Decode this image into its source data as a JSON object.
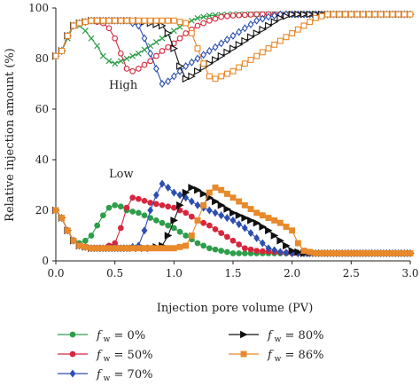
{
  "chart_data": {
    "type": "line",
    "title": "",
    "xlabel": "Injection pore volume (PV)",
    "ylabel": "Relative injection amount (%)",
    "xlim": [
      0,
      3.0
    ],
    "ylim": [
      0,
      100
    ],
    "xticks": [
      "0.0",
      "0.5",
      "1.0",
      "1.5",
      "2.0",
      "2.5",
      "3.0"
    ],
    "yticks": [
      "0",
      "20",
      "40",
      "60",
      "80",
      "100"
    ],
    "grid": false,
    "legend_position": "bottom",
    "annotations": [
      {
        "id": "high",
        "text": "High",
        "x": 0.45,
        "y": 68
      },
      {
        "id": "low",
        "text": "Low",
        "x": 0.45,
        "y": 33
      }
    ],
    "series": [
      {
        "name": "f_w = 0%",
        "label_main": "f",
        "label_sub": "w",
        "label_rest": " = 0%",
        "color": "#2e9e4a",
        "marker": "circle",
        "high": [
          [
            0,
            81
          ],
          [
            0.05,
            83
          ],
          [
            0.1,
            88
          ],
          [
            0.15,
            93
          ],
          [
            0.2,
            93
          ],
          [
            0.25,
            91
          ],
          [
            0.3,
            88
          ],
          [
            0.35,
            85
          ],
          [
            0.4,
            81
          ],
          [
            0.45,
            79
          ],
          [
            0.5,
            78
          ],
          [
            0.55,
            79
          ],
          [
            0.6,
            80
          ],
          [
            0.7,
            82
          ],
          [
            0.8,
            85
          ],
          [
            0.9,
            88
          ],
          [
            1.0,
            91
          ],
          [
            1.1,
            94
          ],
          [
            1.2,
            96
          ],
          [
            1.3,
            97
          ],
          [
            1.5,
            97.5
          ],
          [
            2.0,
            97.5
          ],
          [
            3.0,
            97.5
          ]
        ],
        "low": [
          [
            0,
            20
          ],
          [
            0.05,
            17
          ],
          [
            0.1,
            12
          ],
          [
            0.15,
            8
          ],
          [
            0.2,
            7
          ],
          [
            0.25,
            8
          ],
          [
            0.3,
            10
          ],
          [
            0.35,
            14
          ],
          [
            0.4,
            18
          ],
          [
            0.45,
            21
          ],
          [
            0.5,
            22
          ],
          [
            0.55,
            21.5
          ],
          [
            0.6,
            20
          ],
          [
            0.7,
            19
          ],
          [
            0.8,
            17
          ],
          [
            0.9,
            15
          ],
          [
            1.0,
            13
          ],
          [
            1.1,
            10
          ],
          [
            1.2,
            7
          ],
          [
            1.3,
            5
          ],
          [
            1.4,
            4
          ],
          [
            1.5,
            3
          ],
          [
            2.0,
            3
          ],
          [
            3.0,
            3
          ]
        ]
      },
      {
        "name": "f_w = 50%",
        "label_main": "f",
        "label_sub": "w",
        "label_rest": " = 50%",
        "color": "#d7263d",
        "marker": "circle",
        "high": [
          [
            0,
            81
          ],
          [
            0.05,
            83
          ],
          [
            0.1,
            89
          ],
          [
            0.15,
            93
          ],
          [
            0.2,
            94
          ],
          [
            0.3,
            95
          ],
          [
            0.4,
            94
          ],
          [
            0.45,
            92
          ],
          [
            0.5,
            88
          ],
          [
            0.55,
            82
          ],
          [
            0.6,
            76
          ],
          [
            0.65,
            75
          ],
          [
            0.7,
            76
          ],
          [
            0.8,
            79
          ],
          [
            0.9,
            83
          ],
          [
            1.0,
            86
          ],
          [
            1.1,
            90
          ],
          [
            1.2,
            93
          ],
          [
            1.3,
            95
          ],
          [
            1.4,
            96.5
          ],
          [
            1.5,
            97
          ],
          [
            1.7,
            97.5
          ],
          [
            2.0,
            97.5
          ],
          [
            3.0,
            97.5
          ]
        ],
        "low": [
          [
            0,
            20
          ],
          [
            0.05,
            17
          ],
          [
            0.1,
            12
          ],
          [
            0.15,
            8
          ],
          [
            0.2,
            6
          ],
          [
            0.3,
            5
          ],
          [
            0.4,
            5
          ],
          [
            0.5,
            7
          ],
          [
            0.55,
            13
          ],
          [
            0.6,
            21
          ],
          [
            0.65,
            25
          ],
          [
            0.7,
            24.5
          ],
          [
            0.8,
            23
          ],
          [
            0.9,
            22
          ],
          [
            1.0,
            21
          ],
          [
            1.1,
            19
          ],
          [
            1.2,
            16
          ],
          [
            1.3,
            14
          ],
          [
            1.4,
            11
          ],
          [
            1.5,
            8
          ],
          [
            1.6,
            5
          ],
          [
            1.7,
            4
          ],
          [
            2.0,
            3
          ],
          [
            3.0,
            3
          ]
        ]
      },
      {
        "name": "f_w = 70%",
        "label_main": "f",
        "label_sub": "w",
        "label_rest": " = 70%",
        "color": "#2c4fb0",
        "marker": "diamond",
        "high": [
          [
            0,
            81
          ],
          [
            0.05,
            83
          ],
          [
            0.1,
            89
          ],
          [
            0.15,
            93
          ],
          [
            0.2,
            94
          ],
          [
            0.3,
            95
          ],
          [
            0.4,
            95
          ],
          [
            0.5,
            95
          ],
          [
            0.6,
            95
          ],
          [
            0.7,
            93
          ],
          [
            0.75,
            88
          ],
          [
            0.8,
            82
          ],
          [
            0.85,
            76
          ],
          [
            0.9,
            70
          ],
          [
            0.95,
            71
          ],
          [
            1.0,
            73
          ],
          [
            1.1,
            77
          ],
          [
            1.2,
            80
          ],
          [
            1.3,
            83
          ],
          [
            1.4,
            86
          ],
          [
            1.5,
            89
          ],
          [
            1.6,
            92
          ],
          [
            1.7,
            95
          ],
          [
            1.8,
            96.5
          ],
          [
            1.9,
            97.5
          ],
          [
            2.0,
            97.5
          ],
          [
            3.0,
            97.5
          ]
        ],
        "low": [
          [
            0,
            20
          ],
          [
            0.05,
            17
          ],
          [
            0.1,
            12
          ],
          [
            0.15,
            8
          ],
          [
            0.2,
            6
          ],
          [
            0.3,
            5
          ],
          [
            0.4,
            5
          ],
          [
            0.5,
            5
          ],
          [
            0.6,
            5
          ],
          [
            0.7,
            6
          ],
          [
            0.75,
            12
          ],
          [
            0.8,
            20
          ],
          [
            0.85,
            26
          ],
          [
            0.9,
            30.5
          ],
          [
            0.95,
            29
          ],
          [
            1.0,
            27
          ],
          [
            1.1,
            25
          ],
          [
            1.2,
            22
          ],
          [
            1.3,
            20
          ],
          [
            1.4,
            18
          ],
          [
            1.5,
            16
          ],
          [
            1.6,
            13
          ],
          [
            1.7,
            9
          ],
          [
            1.8,
            5
          ],
          [
            1.9,
            3.5
          ],
          [
            2.0,
            3
          ],
          [
            3.0,
            3
          ]
        ]
      },
      {
        "name": "f_w = 80%",
        "label_main": "f",
        "label_sub": "w",
        "label_rest": " = 80%",
        "color": "#111111",
        "marker": "triangle",
        "high": [
          [
            0,
            81
          ],
          [
            0.05,
            83
          ],
          [
            0.1,
            89
          ],
          [
            0.15,
            93
          ],
          [
            0.2,
            94
          ],
          [
            0.3,
            95
          ],
          [
            0.4,
            95
          ],
          [
            0.5,
            95
          ],
          [
            0.6,
            95
          ],
          [
            0.7,
            95
          ],
          [
            0.8,
            94
          ],
          [
            0.9,
            93
          ],
          [
            0.95,
            90
          ],
          [
            1.0,
            84
          ],
          [
            1.05,
            77
          ],
          [
            1.1,
            72
          ],
          [
            1.15,
            73
          ],
          [
            1.2,
            75
          ],
          [
            1.3,
            78
          ],
          [
            1.4,
            81
          ],
          [
            1.5,
            84
          ],
          [
            1.6,
            87
          ],
          [
            1.7,
            90
          ],
          [
            1.8,
            93
          ],
          [
            1.9,
            96
          ],
          [
            2.0,
            97.5
          ],
          [
            3.0,
            97.5
          ]
        ],
        "low": [
          [
            0,
            20
          ],
          [
            0.05,
            17
          ],
          [
            0.1,
            12
          ],
          [
            0.15,
            8
          ],
          [
            0.2,
            6
          ],
          [
            0.3,
            5
          ],
          [
            0.4,
            5
          ],
          [
            0.5,
            5
          ],
          [
            0.6,
            5
          ],
          [
            0.7,
            5
          ],
          [
            0.8,
            5
          ],
          [
            0.9,
            6
          ],
          [
            0.95,
            10
          ],
          [
            1.0,
            16
          ],
          [
            1.05,
            22
          ],
          [
            1.1,
            27
          ],
          [
            1.15,
            29
          ],
          [
            1.2,
            28
          ],
          [
            1.3,
            25
          ],
          [
            1.4,
            22
          ],
          [
            1.5,
            19
          ],
          [
            1.6,
            17
          ],
          [
            1.7,
            15
          ],
          [
            1.8,
            12
          ],
          [
            1.9,
            8
          ],
          [
            2.0,
            4
          ],
          [
            2.1,
            3
          ],
          [
            3.0,
            3
          ]
        ]
      },
      {
        "name": "f_w = 86%",
        "label_main": "f",
        "label_sub": "w",
        "label_rest": " = 86%",
        "color": "#e8892b",
        "marker": "square",
        "high": [
          [
            0,
            81
          ],
          [
            0.05,
            83
          ],
          [
            0.1,
            89
          ],
          [
            0.15,
            93
          ],
          [
            0.2,
            94
          ],
          [
            0.3,
            95
          ],
          [
            0.4,
            95
          ],
          [
            0.5,
            95
          ],
          [
            0.6,
            95
          ],
          [
            0.7,
            95
          ],
          [
            0.8,
            95
          ],
          [
            0.9,
            95
          ],
          [
            1.0,
            95
          ],
          [
            1.1,
            94
          ],
          [
            1.15,
            90
          ],
          [
            1.2,
            84
          ],
          [
            1.25,
            78
          ],
          [
            1.3,
            73
          ],
          [
            1.35,
            72
          ],
          [
            1.4,
            73
          ],
          [
            1.5,
            75
          ],
          [
            1.6,
            78
          ],
          [
            1.7,
            81
          ],
          [
            1.8,
            84
          ],
          [
            1.9,
            87
          ],
          [
            2.0,
            90
          ],
          [
            2.1,
            93
          ],
          [
            2.2,
            96
          ],
          [
            2.3,
            97.5
          ],
          [
            2.5,
            97.5
          ],
          [
            3.0,
            97.5
          ]
        ],
        "low": [
          [
            0,
            20
          ],
          [
            0.05,
            17
          ],
          [
            0.1,
            12
          ],
          [
            0.15,
            8
          ],
          [
            0.2,
            6
          ],
          [
            0.3,
            5
          ],
          [
            0.4,
            5
          ],
          [
            0.5,
            5
          ],
          [
            0.6,
            5
          ],
          [
            0.7,
            5
          ],
          [
            0.8,
            5
          ],
          [
            0.9,
            5
          ],
          [
            1.0,
            5
          ],
          [
            1.1,
            6
          ],
          [
            1.15,
            10
          ],
          [
            1.2,
            16
          ],
          [
            1.25,
            22
          ],
          [
            1.3,
            27
          ],
          [
            1.35,
            29
          ],
          [
            1.4,
            28
          ],
          [
            1.5,
            25
          ],
          [
            1.6,
            22
          ],
          [
            1.7,
            19
          ],
          [
            1.8,
            17
          ],
          [
            1.9,
            15
          ],
          [
            2.0,
            12
          ],
          [
            2.05,
            7
          ],
          [
            2.1,
            4
          ],
          [
            2.2,
            3
          ],
          [
            3.0,
            3
          ]
        ]
      }
    ]
  }
}
